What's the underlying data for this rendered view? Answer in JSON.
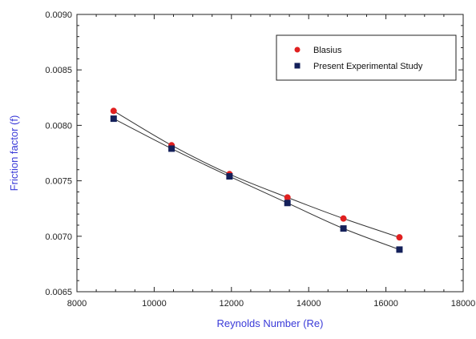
{
  "chart_data": {
    "type": "scatter",
    "title": "",
    "xlabel": "Reynolds Number (Re)",
    "ylabel": "Friction factor (f)",
    "xlim": [
      8000,
      18000
    ],
    "ylim": [
      0.0065,
      0.009
    ],
    "x_ticks": [
      8000,
      10000,
      12000,
      14000,
      16000,
      18000
    ],
    "x_tick_labels": [
      "8000",
      "10000",
      "12000",
      "14000",
      "16000",
      "18000"
    ],
    "y_ticks": [
      0.0065,
      0.007,
      0.0075,
      0.008,
      0.0085,
      0.009
    ],
    "y_tick_labels": [
      "0.0065",
      "0.0070",
      "0.0075",
      "0.0080",
      "0.0085",
      "0.0090"
    ],
    "grid": false,
    "legend_position": "top-right",
    "series": [
      {
        "name": "Blasius",
        "marker": "circle",
        "color": "#e02020",
        "x": [
          8950,
          10450,
          11950,
          13450,
          14900,
          16350
        ],
        "y": [
          0.00813,
          0.00782,
          0.00756,
          0.00735,
          0.00716,
          0.00699
        ]
      },
      {
        "name": "Present Experimental Study",
        "marker": "square",
        "color": "#14205a",
        "x": [
          8950,
          10450,
          11950,
          13450,
          14900,
          16350
        ],
        "y": [
          0.00806,
          0.00779,
          0.00754,
          0.0073,
          0.00707,
          0.00688
        ]
      }
    ],
    "line_color": "#333333"
  }
}
